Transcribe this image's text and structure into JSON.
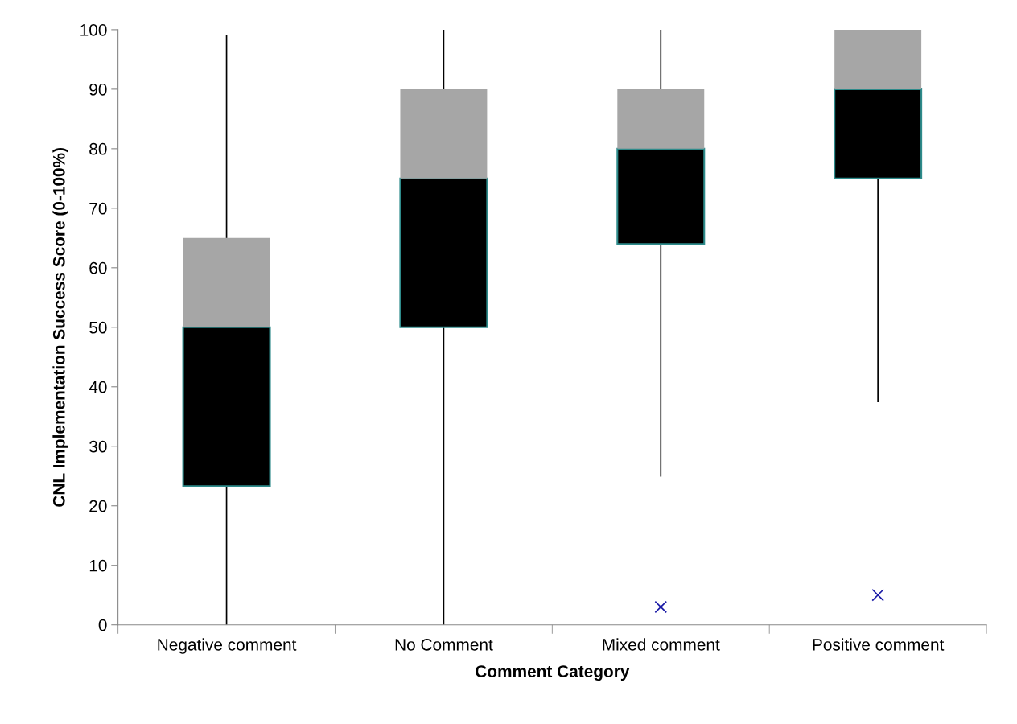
{
  "chart_data": {
    "type": "box",
    "xlabel": "Comment Category",
    "ylabel": "CNL Implementation Success Score (0-100%)",
    "categories": [
      "Negative comment",
      "No Comment",
      "Mixed comment",
      "Positive comment"
    ],
    "series": [
      {
        "color": "#000000",
        "boxes": [
          {
            "low": 0,
            "q1": 23.3,
            "median": 50,
            "q3": 65,
            "high": 99
          },
          {
            "low": 0,
            "q1": 50,
            "median": 75,
            "q3": 90,
            "high": 100
          },
          {
            "low": 25,
            "q1": 64,
            "median": 80,
            "q3": 90,
            "high": 100,
            "outliers": [
              3
            ]
          },
          {
            "low": 37.5,
            "q1": 75,
            "median": 90,
            "q3": 100,
            "high": 100,
            "outliers": [
              5
            ]
          }
        ]
      }
    ],
    "ylim": [
      0,
      100
    ],
    "yticks": [
      0,
      10,
      20,
      30,
      40,
      50,
      60,
      70,
      80,
      90,
      100
    ],
    "grid": false,
    "marker": "cross"
  }
}
